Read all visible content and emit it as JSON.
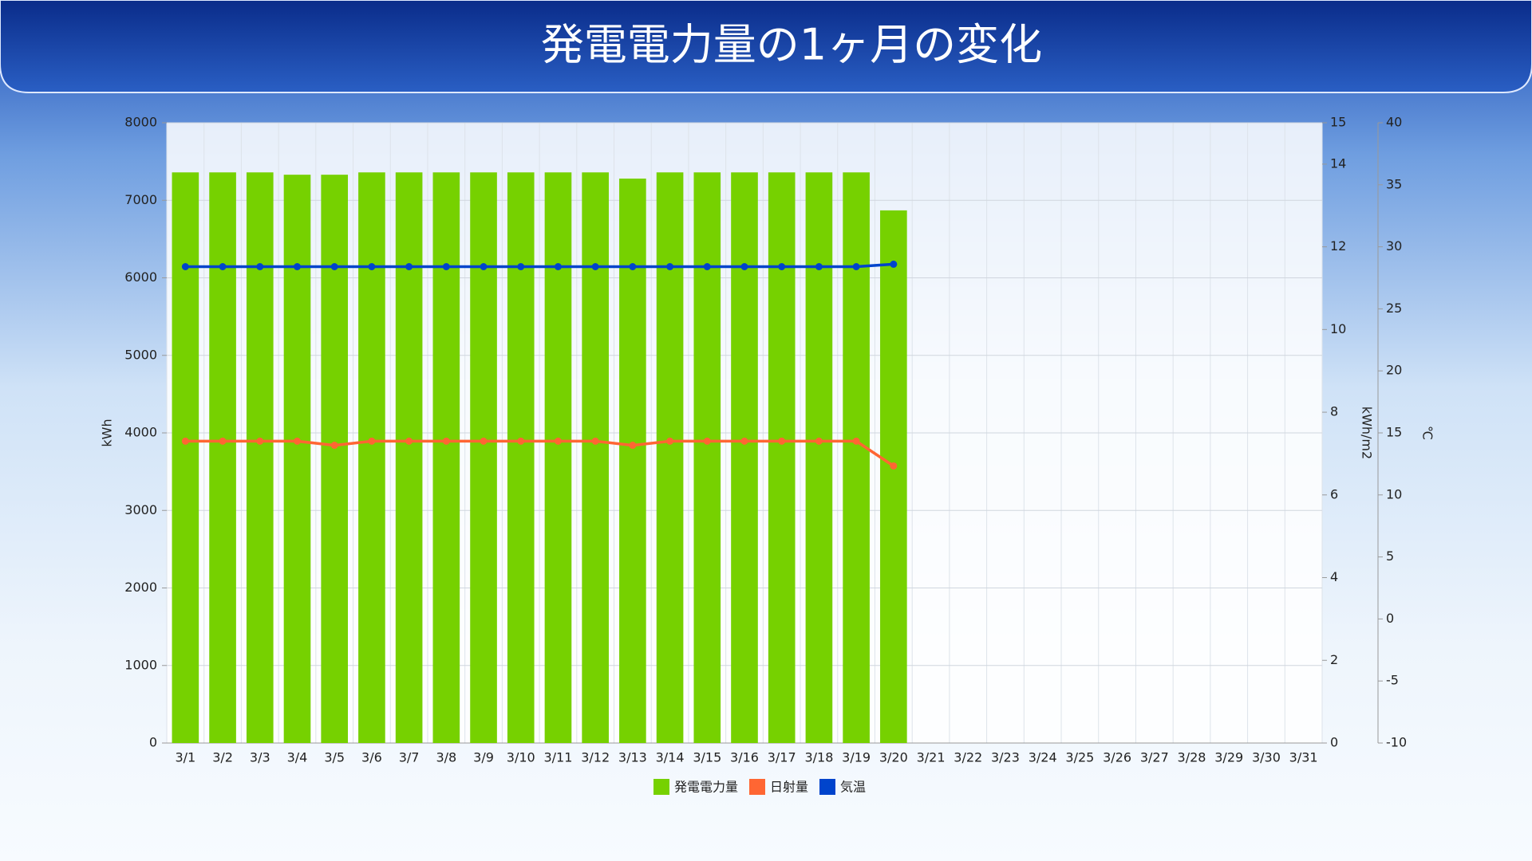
{
  "chart_data": {
    "type": "bar",
    "title": "発電電力量の1ヶ月の変化",
    "categories": [
      "3/1",
      "3/2",
      "3/3",
      "3/4",
      "3/5",
      "3/6",
      "3/7",
      "3/8",
      "3/9",
      "3/10",
      "3/11",
      "3/12",
      "3/13",
      "3/14",
      "3/15",
      "3/16",
      "3/17",
      "3/18",
      "3/19",
      "3/20",
      "3/21",
      "3/22",
      "3/23",
      "3/24",
      "3/25",
      "3/26",
      "3/27",
      "3/28",
      "3/29",
      "3/30",
      "3/31"
    ],
    "series": [
      {
        "name": "発電電力量",
        "type": "bar",
        "color": "#76d100",
        "axis": "y",
        "values": [
          7360,
          7360,
          7360,
          7330,
          7330,
          7360,
          7360,
          7360,
          7360,
          7360,
          7360,
          7360,
          7280,
          7360,
          7360,
          7360,
          7360,
          7360,
          7360,
          6870,
          null,
          null,
          null,
          null,
          null,
          null,
          null,
          null,
          null,
          null,
          null
        ]
      },
      {
        "name": "日射量",
        "type": "line",
        "color": "#ff6633",
        "axis": "y2",
        "values": [
          7.3,
          7.3,
          7.3,
          7.3,
          7.2,
          7.3,
          7.3,
          7.3,
          7.3,
          7.3,
          7.3,
          7.3,
          7.2,
          7.3,
          7.3,
          7.3,
          7.3,
          7.3,
          7.3,
          6.7,
          null,
          null,
          null,
          null,
          null,
          null,
          null,
          null,
          null,
          null,
          null
        ]
      },
      {
        "name": "気温",
        "type": "line",
        "color": "#0044cc",
        "axis": "y3",
        "values": [
          28.4,
          28.4,
          28.4,
          28.4,
          28.4,
          28.4,
          28.4,
          28.4,
          28.4,
          28.4,
          28.4,
          28.4,
          28.4,
          28.4,
          28.4,
          28.4,
          28.4,
          28.4,
          28.4,
          28.6,
          null,
          null,
          null,
          null,
          null,
          null,
          null,
          null,
          null,
          null,
          null
        ]
      }
    ],
    "ylabel": "kWh",
    "ylim": [
      0,
      8000
    ],
    "yticks": [
      0,
      1000,
      2000,
      3000,
      4000,
      5000,
      6000,
      7000,
      8000
    ],
    "y2label": "kWh/m2",
    "y2lim": [
      0,
      15
    ],
    "y2ticks": [
      0,
      2,
      4,
      6,
      8,
      10,
      12,
      14,
      15
    ],
    "y3label": "℃",
    "y3lim": [
      -10,
      40
    ],
    "y3ticks": [
      -10,
      -5,
      0,
      5,
      10,
      15,
      20,
      25,
      30,
      35,
      40
    ],
    "grid": true,
    "legend": "bottom"
  }
}
